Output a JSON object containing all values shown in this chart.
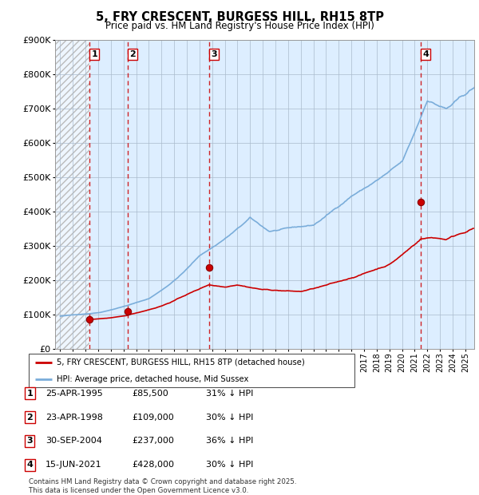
{
  "title": "5, FRY CRESCENT, BURGESS HILL, RH15 8TP",
  "subtitle": "Price paid vs. HM Land Registry's House Price Index (HPI)",
  "ylim": [
    0,
    900000
  ],
  "ytick_labels": [
    "£0",
    "£100K",
    "£200K",
    "£300K",
    "£400K",
    "£500K",
    "£600K",
    "£700K",
    "£800K",
    "£900K"
  ],
  "ytick_values": [
    0,
    100000,
    200000,
    300000,
    400000,
    500000,
    600000,
    700000,
    800000,
    900000
  ],
  "xlim_start": 1992.6,
  "xlim_end": 2025.7,
  "hatch_end_year": 1995.32,
  "purchases": [
    {
      "num": 1,
      "date": "25-APR-1995",
      "year": 1995.32,
      "price": 85500,
      "pct": "31%",
      "label": "1"
    },
    {
      "num": 2,
      "date": "23-APR-1998",
      "year": 1998.32,
      "price": 109000,
      "pct": "30%",
      "label": "2"
    },
    {
      "num": 3,
      "date": "30-SEP-2004",
      "year": 2004.75,
      "price": 237000,
      "pct": "36%",
      "label": "3"
    },
    {
      "num": 4,
      "date": "15-JUN-2021",
      "year": 2021.46,
      "price": 428000,
      "pct": "30%",
      "label": "4"
    }
  ],
  "red_line_color": "#cc0000",
  "blue_line_color": "#7aadda",
  "vline_color": "#cc0000",
  "bg_color": "#ddeeff",
  "grid_color": "#aabbcc",
  "footer": "Contains HM Land Registry data © Crown copyright and database right 2025.\nThis data is licensed under the Open Government Licence v3.0.",
  "legend_line1": "5, FRY CRESCENT, BURGESS HILL, RH15 8TP (detached house)",
  "legend_line2": "HPI: Average price, detached house, Mid Sussex"
}
